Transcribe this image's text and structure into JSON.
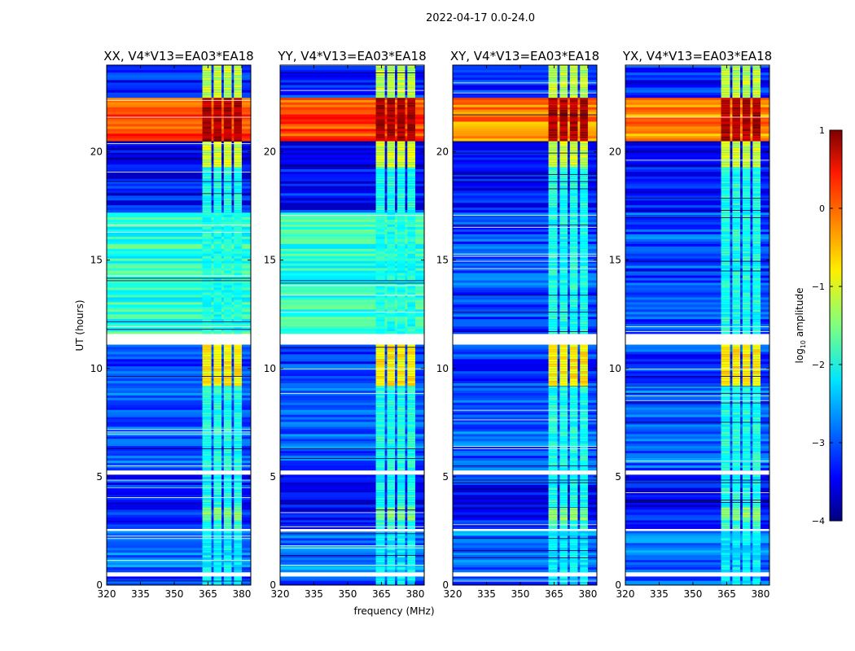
{
  "chart_data": {
    "type": "heatmap",
    "suptitle": "2022-04-17 0.0-24.0",
    "xlabel": "frequency (MHz)",
    "ylabel": "UT (hours)",
    "xlim": [
      320,
      384
    ],
    "ylim": [
      0,
      24
    ],
    "xticks": [
      "320",
      "335",
      "350",
      "365",
      "380"
    ],
    "xtick_values": [
      320,
      335,
      350,
      365,
      380
    ],
    "yticks": [
      "0",
      "5",
      "10",
      "15",
      "20"
    ],
    "ytick_values": [
      0,
      5,
      10,
      15,
      20
    ],
    "rfi_band_mhz": [
      [
        362.5,
        366.5
      ],
      [
        367.5,
        371
      ],
      [
        372,
        375.5
      ],
      [
        376.5,
        380
      ]
    ],
    "colorbar": {
      "label": "log10 amplitude",
      "label_main": "log",
      "label_sub": "10",
      "label_rest": " amplitude",
      "range": [
        -4,
        1
      ],
      "ticks": [
        "−4",
        "−3",
        "−2",
        "−1",
        "0",
        "1"
      ],
      "tick_values": [
        -4,
        -3,
        -2,
        -1,
        0,
        1
      ],
      "colormap": "jet"
    },
    "panels": [
      {
        "title": "XX, V4*V13=EA03*EA18",
        "parallel": true
      },
      {
        "title": "YY, V4*V13=EA03*EA18",
        "parallel": true
      },
      {
        "title": "XY, V4*V13=EA03*EA18",
        "parallel": false
      },
      {
        "title": "YX, V4*V13=EA03*EA18",
        "parallel": false
      }
    ],
    "segments_hours_log_amplitude": [
      {
        "t": [
          0,
          0.4
        ],
        "bg": -3.0,
        "band": -2.2
      },
      {
        "t": [
          0.4,
          0.6
        ],
        "gap": true
      },
      {
        "t": [
          0.6,
          2.5
        ],
        "bg": -2.8,
        "band": -2.2
      },
      {
        "t": [
          2.5,
          2.6
        ],
        "gap": true
      },
      {
        "t": [
          2.6,
          3.0
        ],
        "bg": -3.3,
        "band": -1.9
      },
      {
        "t": [
          3.0,
          3.6
        ],
        "bg": -3.3,
        "band": -1.5
      },
      {
        "t": [
          3.6,
          4.5
        ],
        "bg": -3.4,
        "band": -2.0
      },
      {
        "t": [
          4.5,
          5.1
        ],
        "bg": -3.2,
        "band": -2.1
      },
      {
        "t": [
          5.1,
          5.3
        ],
        "gap": true
      },
      {
        "t": [
          5.3,
          9.2
        ],
        "bg": -2.9,
        "band": -2.0
      },
      {
        "t": [
          9.2,
          11.1
        ],
        "bg": -3.1,
        "band": -0.8
      },
      {
        "t": [
          11.1,
          11.6
        ],
        "gap": true
      },
      {
        "t": [
          11.6,
          17.2
        ],
        "bg": -1.9,
        "bg_cross": -3.0,
        "band": -2.0
      },
      {
        "t": [
          17.2,
          19.3
        ],
        "bg": -3.3,
        "band": -2.0
      },
      {
        "t": [
          19.3,
          20.5
        ],
        "bg": -3.5,
        "band": -1.1
      },
      {
        "t": [
          20.5,
          22.5
        ],
        "bg": 0.0,
        "bg_cross": -0.3,
        "band": 0.8
      },
      {
        "t": [
          22.5,
          24
        ],
        "bg": -3.2,
        "band": -1.2
      }
    ]
  }
}
